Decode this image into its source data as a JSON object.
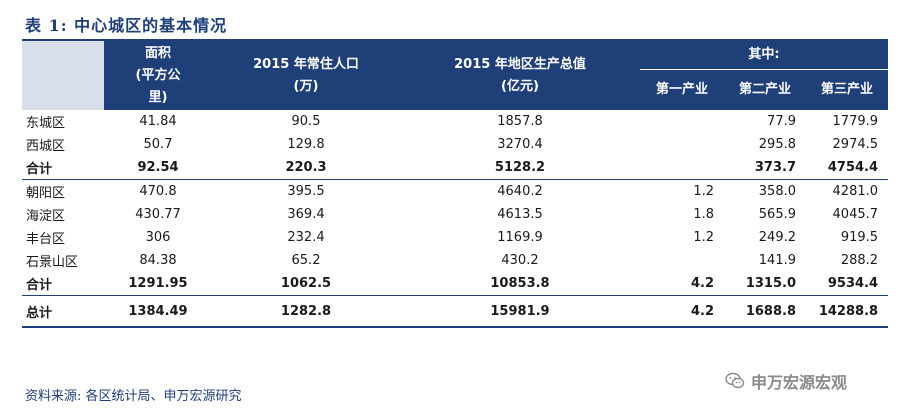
{
  "caption": "表 1: 中心城区的基本情况",
  "headers": {
    "area_line1": "面积",
    "area_line2": "(平方公",
    "area_line3": "里)",
    "pop_line1": "2015 年常住人口",
    "pop_line2": "(万)",
    "gdp_line1": "2015 年地区生产总值",
    "gdp_line2": "(亿元)",
    "of_which": "其中:",
    "primary": "第一产业",
    "secondary": "第二产业",
    "tertiary": "第三产业"
  },
  "rows": [
    {
      "name": "东城区",
      "area": "41.84",
      "pop": "90.5",
      "gdp": "1857.8",
      "primary": "",
      "secondary": "77.9",
      "tertiary": "1779.9"
    },
    {
      "name": "西城区",
      "area": "50.7",
      "pop": "129.8",
      "gdp": "3270.4",
      "primary": "",
      "secondary": "295.8",
      "tertiary": "2974.5"
    },
    {
      "name": "合计",
      "area": "92.54",
      "pop": "220.3",
      "gdp": "5128.2",
      "primary": "",
      "secondary": "373.7",
      "tertiary": "4754.4"
    },
    {
      "name": "朝阳区",
      "area": "470.8",
      "pop": "395.5",
      "gdp": "4640.2",
      "primary": "1.2",
      "secondary": "358.0",
      "tertiary": "4281.0"
    },
    {
      "name": "海淀区",
      "area": "430.77",
      "pop": "369.4",
      "gdp": "4613.5",
      "primary": "1.8",
      "secondary": "565.9",
      "tertiary": "4045.7"
    },
    {
      "name": "丰台区",
      "area": "306",
      "pop": "232.4",
      "gdp": "1169.9",
      "primary": "1.2",
      "secondary": "249.2",
      "tertiary": "919.5"
    },
    {
      "name": "石景山区",
      "area": "84.38",
      "pop": "65.2",
      "gdp": "430.2",
      "primary": "",
      "secondary": "141.9",
      "tertiary": "288.2"
    },
    {
      "name": "合计",
      "area": "1291.95",
      "pop": "1062.5",
      "gdp": "10853.8",
      "primary": "4.2",
      "secondary": "1315.0",
      "tertiary": "9534.4"
    },
    {
      "name": "总计",
      "area": "1384.49",
      "pop": "1282.8",
      "gdp": "15981.9",
      "primary": "4.2",
      "secondary": "1688.8",
      "tertiary": "14288.8"
    }
  ],
  "source": "资料来源: 各区统计局、申万宏源研究",
  "watermark": {
    "text": "申万宏源宏观",
    "icon": "wechat-icon"
  },
  "colors": {
    "header_bg": "#1f3f78",
    "header_text": "#ffffff",
    "accent": "#1f3f78"
  }
}
